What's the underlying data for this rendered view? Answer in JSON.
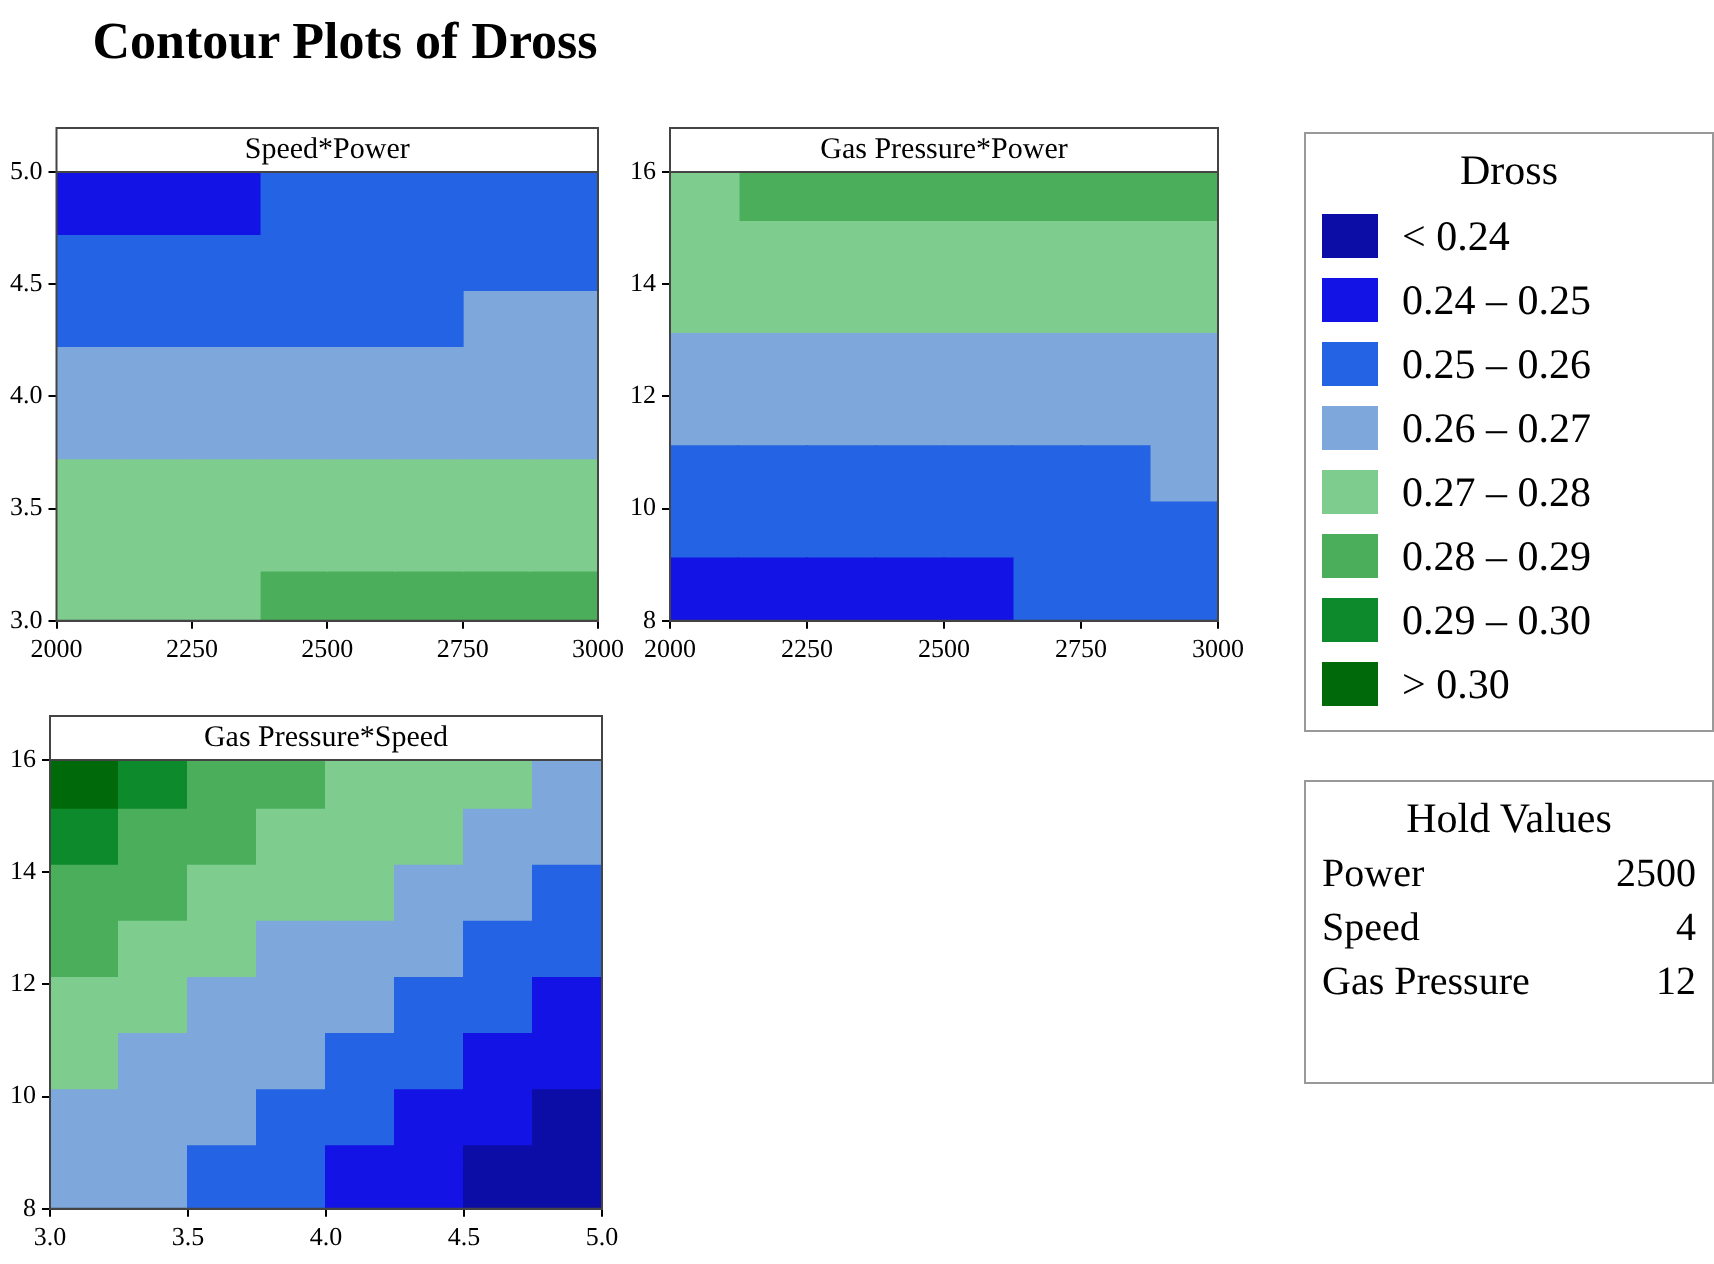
{
  "chart_data": [
    {
      "type": "scatter",
      "title": "Contour Plots of Dross",
      "subtitle": "Speed*Power",
      "marker": "square",
      "xlim": [
        2000,
        3000
      ],
      "xticks": [
        2000,
        2250,
        2500,
        2750,
        3000
      ],
      "ylim": [
        3,
        5
      ],
      "yticks": [
        {
          "value": 3,
          "label": "3.0"
        },
        3.5,
        {
          "value": 4,
          "label": "4.0"
        },
        4.5,
        {
          "value": 5,
          "label": "5.0"
        }
      ],
      "series": [
        {
          "color": "#1313e6",
          "x": [
            2062.5,
            2187.5,
            2312.5
          ],
          "values": [
            4.875,
            4.875,
            4.875
          ]
        },
        {
          "color": "#2463e3",
          "x": [
            2437.5,
            2562.5,
            2687.5,
            2812.5,
            2937.5,
            2062.5,
            2187.5,
            2312.5,
            2437.5,
            2562.5,
            2687.5,
            2812.5,
            2937.5,
            2062.5,
            2187.5,
            2312.5,
            2437.5,
            2562.5,
            2687.5
          ],
          "values": [
            4.875,
            4.875,
            4.875,
            4.875,
            4.875,
            4.625,
            4.625,
            4.625,
            4.625,
            4.625,
            4.625,
            4.625,
            4.625,
            4.375,
            4.375,
            4.375,
            4.375,
            4.375,
            4.375
          ]
        },
        {
          "color": "#7ea7db",
          "x": [
            2812.5,
            2937.5,
            2062.5,
            2187.5,
            2312.5,
            2437.5,
            2562.5,
            2687.5,
            2812.5,
            2937.5,
            2062.5,
            2187.5,
            2312.5,
            2437.5,
            2562.5,
            2687.5,
            2812.5,
            2937.5
          ],
          "values": [
            4.375,
            4.375,
            4.125,
            4.125,
            4.125,
            4.125,
            4.125,
            4.125,
            4.125,
            4.125,
            3.875,
            3.875,
            3.875,
            3.875,
            3.875,
            3.875,
            3.875,
            3.875
          ]
        },
        {
          "color": "#7fcd8e",
          "x": [
            2062.5,
            2187.5,
            2312.5,
            2437.5,
            2562.5,
            2687.5,
            2812.5,
            2937.5,
            2062.5,
            2187.5,
            2312.5,
            2437.5,
            2562.5,
            2687.5,
            2812.5,
            2937.5,
            2062.5,
            2187.5,
            2312.5
          ],
          "values": [
            3.625,
            3.625,
            3.625,
            3.625,
            3.625,
            3.625,
            3.625,
            3.625,
            3.375,
            3.375,
            3.375,
            3.375,
            3.375,
            3.375,
            3.375,
            3.375,
            3.125,
            3.125,
            3.125
          ]
        },
        {
          "color": "#4bae5b",
          "x": [
            2437.5,
            2562.5,
            2687.5,
            2812.5,
            2937.5
          ],
          "values": [
            3.125,
            3.125,
            3.125,
            3.125,
            3.125
          ]
        }
      ]
    },
    {
      "type": "scatter",
      "subtitle": "Gas Pressure*Power",
      "marker": "square",
      "xlim": [
        2000,
        3000
      ],
      "xticks": [
        2000,
        2250,
        2500,
        2750,
        3000
      ],
      "ylim": [
        8,
        16
      ],
      "yticks": [
        8,
        10,
        12,
        14,
        16
      ],
      "series": [
        {
          "color": "#1313e6",
          "x": [
            2062.5,
            2187.5,
            2312.5,
            2437.5,
            2562.5
          ],
          "values": [
            8.5,
            8.5,
            8.5,
            8.5,
            8.5
          ]
        },
        {
          "color": "#2463e3",
          "x": [
            2687.5,
            2812.5,
            2937.5,
            2062.5,
            2187.5,
            2312.5,
            2437.5,
            2562.5,
            2687.5,
            2812.5,
            2937.5,
            2062.5,
            2187.5,
            2312.5,
            2437.5,
            2562.5,
            2687.5,
            2812.5
          ],
          "values": [
            8.5,
            8.5,
            8.5,
            9.5,
            9.5,
            9.5,
            9.5,
            9.5,
            9.5,
            9.5,
            9.5,
            10.5,
            10.5,
            10.5,
            10.5,
            10.5,
            10.5,
            10.5
          ]
        },
        {
          "color": "#7ea7db",
          "x": [
            2937.5,
            2062.5,
            2187.5,
            2312.5,
            2437.5,
            2562.5,
            2687.5,
            2812.5,
            2937.5,
            2062.5,
            2187.5,
            2312.5,
            2437.5,
            2562.5,
            2687.5,
            2812.5,
            2937.5
          ],
          "values": [
            10.5,
            11.5,
            11.5,
            11.5,
            11.5,
            11.5,
            11.5,
            11.5,
            11.5,
            12.5,
            12.5,
            12.5,
            12.5,
            12.5,
            12.5,
            12.5,
            12.5
          ]
        },
        {
          "color": "#7fcd8e",
          "x": [
            2062.5,
            2187.5,
            2312.5,
            2437.5,
            2562.5,
            2687.5,
            2812.5,
            2937.5,
            2062.5,
            2187.5,
            2312.5,
            2437.5,
            2562.5,
            2687.5,
            2812.5,
            2937.5,
            2062.5
          ],
          "values": [
            13.5,
            13.5,
            13.5,
            13.5,
            13.5,
            13.5,
            13.5,
            13.5,
            14.5,
            14.5,
            14.5,
            14.5,
            14.5,
            14.5,
            14.5,
            14.5,
            15.5
          ]
        },
        {
          "color": "#4bae5b",
          "x": [
            2187.5,
            2312.5,
            2437.5,
            2562.5,
            2687.5,
            2812.5,
            2937.5
          ],
          "values": [
            15.5,
            15.5,
            15.5,
            15.5,
            15.5,
            15.5,
            15.5
          ]
        }
      ]
    },
    {
      "type": "scatter",
      "subtitle": "Gas Pressure*Speed",
      "marker": "square",
      "legend": "right",
      "legend_title": "Dross",
      "xlim": [
        3,
        5
      ],
      "xticks": [
        {
          "value": 3,
          "label": "3.0"
        },
        3.5,
        {
          "value": 4,
          "label": "4.0"
        },
        4.5,
        {
          "value": 5,
          "label": "5.0"
        }
      ],
      "ylim": [
        8,
        16
      ],
      "yticks": [
        8,
        10,
        12,
        14,
        16
      ],
      "series": [
        {
          "name": "< 0.24",
          "color": "#0c0ca6",
          "x": [
            4.625,
            4.875,
            4.875
          ],
          "values": [
            8.5,
            8.5,
            9.5
          ]
        },
        {
          "name": "0.24 – 0.25",
          "color": "#1313e6",
          "x": [
            4.125,
            4.375,
            4.375,
            4.625,
            4.625,
            4.875,
            4.875
          ],
          "values": [
            8.5,
            8.5,
            9.5,
            9.5,
            10.5,
            10.5,
            11.5
          ]
        },
        {
          "name": "0.25 – 0.26",
          "color": "#2463e3",
          "x": [
            3.625,
            3.875,
            3.875,
            4.125,
            4.125,
            4.375,
            4.375,
            4.625,
            4.625,
            4.875,
            4.875
          ],
          "values": [
            8.5,
            8.5,
            9.5,
            9.5,
            10.5,
            10.5,
            11.5,
            11.5,
            12.5,
            12.5,
            13.5
          ]
        },
        {
          "name": "0.26 – 0.27",
          "color": "#7ea7db",
          "x": [
            3.125,
            3.375,
            3.125,
            3.375,
            3.625,
            3.375,
            3.625,
            3.875,
            3.625,
            3.875,
            4.125,
            3.875,
            4.125,
            4.375,
            4.375,
            4.625,
            4.625,
            4.875,
            4.875
          ],
          "values": [
            8.5,
            8.5,
            9.5,
            9.5,
            9.5,
            10.5,
            10.5,
            10.5,
            11.5,
            11.5,
            11.5,
            12.5,
            12.5,
            12.5,
            13.5,
            13.5,
            14.5,
            14.5,
            15.5
          ]
        },
        {
          "name": "0.27 – 0.28",
          "color": "#7fcd8e",
          "x": [
            3.125,
            3.125,
            3.375,
            3.375,
            3.625,
            3.625,
            3.875,
            4.125,
            3.875,
            4.125,
            4.375,
            4.125,
            4.375,
            4.625
          ],
          "values": [
            10.5,
            11.5,
            11.5,
            12.5,
            12.5,
            13.5,
            13.5,
            13.5,
            14.5,
            14.5,
            14.5,
            15.5,
            15.5,
            15.5
          ]
        },
        {
          "name": "0.28 – 0.29",
          "color": "#4bae5b",
          "x": [
            3.125,
            3.125,
            3.375,
            3.375,
            3.625,
            3.625,
            3.875
          ],
          "values": [
            12.5,
            13.5,
            13.5,
            14.5,
            14.5,
            15.5,
            15.5
          ]
        },
        {
          "name": "0.29 – 0.30",
          "color": "#0d8a2b",
          "x": [
            3.125,
            3.375
          ],
          "values": [
            14.5,
            15.5
          ]
        },
        {
          "name": "> 0.30",
          "color": "#006a0a",
          "x": [
            3.125
          ],
          "values": [
            15.5
          ]
        }
      ]
    },
    {
      "type": "other",
      "title": "Hold Values",
      "annotations": [
        "Power",
        "2500",
        "Speed",
        "4",
        "Gas Pressure",
        "12"
      ]
    }
  ]
}
